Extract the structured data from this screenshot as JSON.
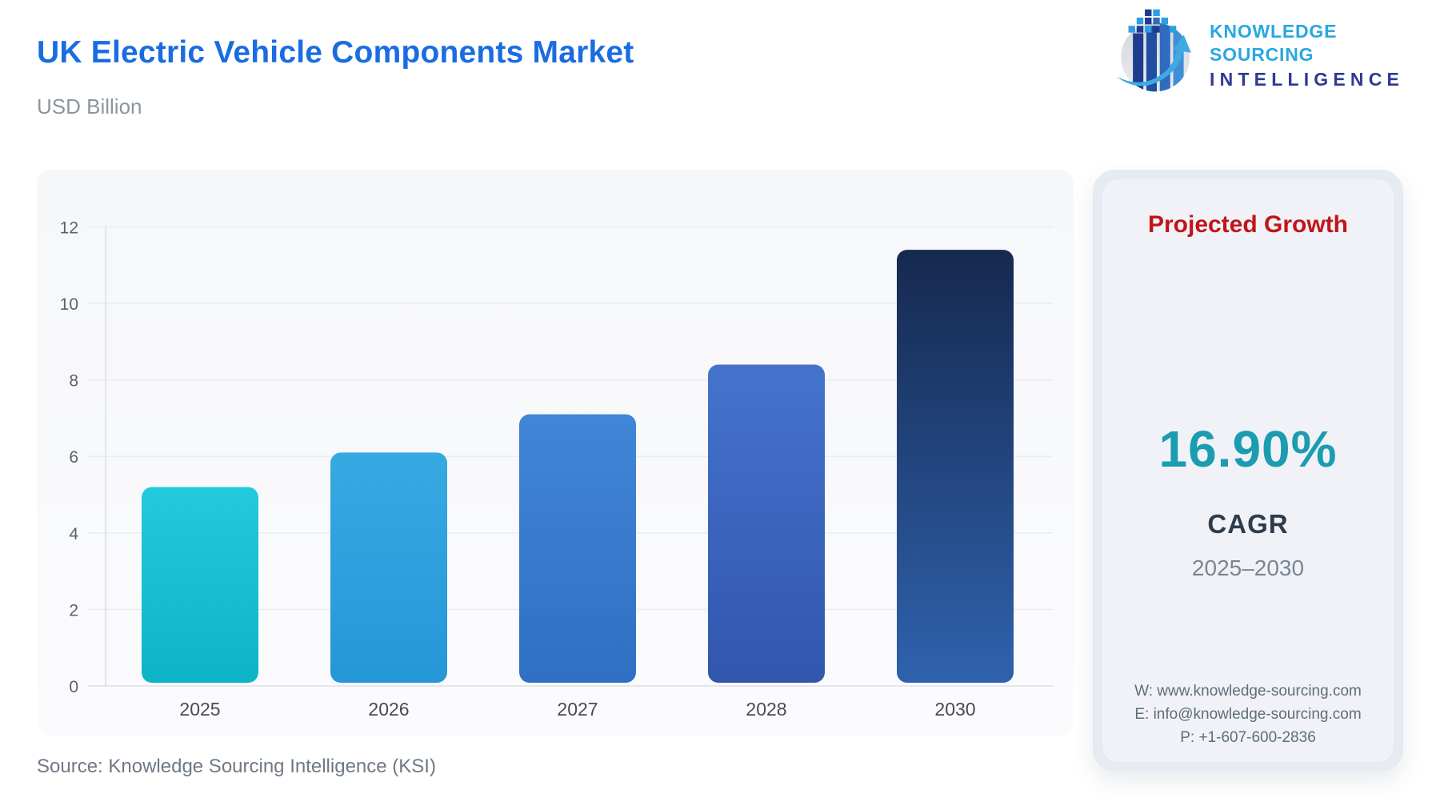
{
  "page": {
    "title": "UK Electric Vehicle Components Market",
    "subtitle": "USD Billion",
    "source": "Source: Knowledge Sourcing Intelligence (KSI)"
  },
  "logo": {
    "line1": "KNOWLEDGE SOURCING",
    "line2": "INTELLIGENCE",
    "line1_color": "#2aa7e1",
    "line2_color": "#2e3a92"
  },
  "chart_data": {
    "type": "bar",
    "title": "UK Electric Vehicle Components Market",
    "ylabel": "USD Billion",
    "xlabel": "",
    "categories": [
      "2025",
      "2026",
      "2027",
      "2028",
      "2030"
    ],
    "values": [
      5.2,
      6.1,
      7.1,
      8.4,
      11.4
    ],
    "ylim": [
      0,
      12
    ],
    "ytick_interval": 2,
    "grid": true,
    "legend": "none",
    "bar_gradients": [
      [
        "#23cadb",
        "#0eb3c7"
      ],
      [
        "#37a9e2",
        "#2597d8"
      ],
      [
        "#4186d6",
        "#2f6fc4"
      ],
      [
        "#4573cc",
        "#3156ae"
      ],
      [
        "#16294f",
        "#2f62ae"
      ]
    ],
    "gridline_color": "#e9ebef",
    "axis_line_color": "#dcdfe5",
    "tick_label_color": "#5b616b",
    "category_label_color": "#464b55"
  },
  "side_panel": {
    "title": "Projected Growth",
    "title_color": "#c11518",
    "value": "16.90%",
    "value_color": "#1b9cb0",
    "label": "CAGR",
    "period": "2025–2030",
    "contacts": {
      "web": "W: www.knowledge-sourcing.com",
      "email": "E: info@knowledge-sourcing.com",
      "phone": "P: +1-607-600-2836"
    }
  }
}
